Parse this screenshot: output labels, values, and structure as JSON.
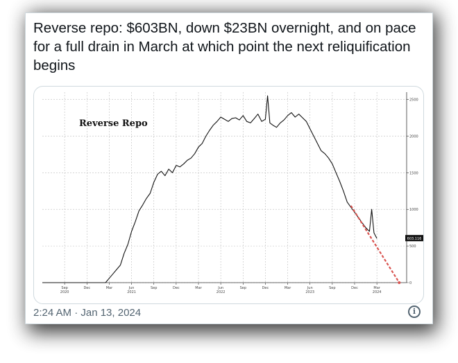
{
  "tweet": {
    "text": "Reverse repo: $603BN, down $23BN overnight, and on pace for a full drain in March at which point the next reliquification begins",
    "timestamp": "2:24 AM · Jan 13, 2024",
    "info_icon": "info-icon"
  },
  "chart_data": {
    "type": "line",
    "title": "Reverse Repo",
    "xlabel": "",
    "ylabel": "",
    "ylim": [
      0,
      2600
    ],
    "yticks": [
      0,
      500,
      1000,
      1500,
      2000,
      2500
    ],
    "last_value_label": "603.116",
    "x_ticks": [
      {
        "label": "Sep",
        "year": "2020",
        "t": 0
      },
      {
        "label": "Dec",
        "year": "",
        "t": 3
      },
      {
        "label": "Mar",
        "year": "",
        "t": 6
      },
      {
        "label": "Jun",
        "year": "2021",
        "t": 9
      },
      {
        "label": "Sep",
        "year": "",
        "t": 12
      },
      {
        "label": "Dec",
        "year": "",
        "t": 15
      },
      {
        "label": "Mar",
        "year": "",
        "t": 18
      },
      {
        "label": "Jun",
        "year": "2022",
        "t": 21
      },
      {
        "label": "Sep",
        "year": "",
        "t": 24
      },
      {
        "label": "Dec",
        "year": "",
        "t": 27
      },
      {
        "label": "Mar",
        "year": "",
        "t": 30
      },
      {
        "label": "Jun",
        "year": "2023",
        "t": 33
      },
      {
        "label": "Sep",
        "year": "",
        "t": 36
      },
      {
        "label": "Dec",
        "year": "",
        "t": 39
      },
      {
        "label": "Mar",
        "year": "2024",
        "t": 42
      }
    ],
    "series": [
      {
        "values": [
          [
            -3,
            0
          ],
          [
            0,
            0
          ],
          [
            3,
            0
          ],
          [
            5.5,
            0
          ],
          [
            6,
            60
          ],
          [
            6.5,
            120
          ],
          [
            7,
            180
          ],
          [
            7.5,
            240
          ],
          [
            8,
            400
          ],
          [
            8.5,
            520
          ],
          [
            9,
            700
          ],
          [
            9.5,
            830
          ],
          [
            10,
            980
          ],
          [
            10.5,
            1060
          ],
          [
            11,
            1150
          ],
          [
            11.5,
            1220
          ],
          [
            12,
            1370
          ],
          [
            12.5,
            1480
          ],
          [
            13,
            1520
          ],
          [
            13.5,
            1460
          ],
          [
            14,
            1550
          ],
          [
            14.5,
            1500
          ],
          [
            15,
            1600
          ],
          [
            15.5,
            1580
          ],
          [
            16,
            1620
          ],
          [
            16.5,
            1670
          ],
          [
            17,
            1700
          ],
          [
            17.5,
            1760
          ],
          [
            18,
            1850
          ],
          [
            18.5,
            1900
          ],
          [
            19,
            2000
          ],
          [
            19.5,
            2080
          ],
          [
            20,
            2150
          ],
          [
            20.5,
            2200
          ],
          [
            21,
            2260
          ],
          [
            21.5,
            2230
          ],
          [
            22,
            2200
          ],
          [
            22.5,
            2240
          ],
          [
            23,
            2250
          ],
          [
            23.5,
            2220
          ],
          [
            24,
            2280
          ],
          [
            24.5,
            2200
          ],
          [
            25,
            2180
          ],
          [
            25.5,
            2240
          ],
          [
            26,
            2300
          ],
          [
            26.5,
            2200
          ],
          [
            27,
            2230
          ],
          [
            27.3,
            2550
          ],
          [
            27.6,
            2180
          ],
          [
            28,
            2150
          ],
          [
            28.5,
            2120
          ],
          [
            29,
            2180
          ],
          [
            29.5,
            2220
          ],
          [
            30,
            2280
          ],
          [
            30.5,
            2320
          ],
          [
            31,
            2260
          ],
          [
            31.5,
            2300
          ],
          [
            32,
            2250
          ],
          [
            32.5,
            2200
          ],
          [
            33,
            2100
          ],
          [
            33.5,
            2000
          ],
          [
            34,
            1900
          ],
          [
            34.5,
            1800
          ],
          [
            35,
            1760
          ],
          [
            35.5,
            1700
          ],
          [
            36,
            1620
          ],
          [
            36.5,
            1500
          ],
          [
            37,
            1380
          ],
          [
            37.5,
            1250
          ],
          [
            38,
            1100
          ],
          [
            38.5,
            1030
          ],
          [
            39,
            960
          ],
          [
            39.5,
            890
          ],
          [
            40,
            820
          ],
          [
            40.5,
            750
          ],
          [
            41,
            700
          ],
          [
            41.3,
            1000
          ],
          [
            41.6,
            680
          ],
          [
            42,
            603
          ]
        ]
      }
    ],
    "trend_line": [
      [
        38.5,
        1050
      ],
      [
        45,
        0
      ]
    ]
  }
}
